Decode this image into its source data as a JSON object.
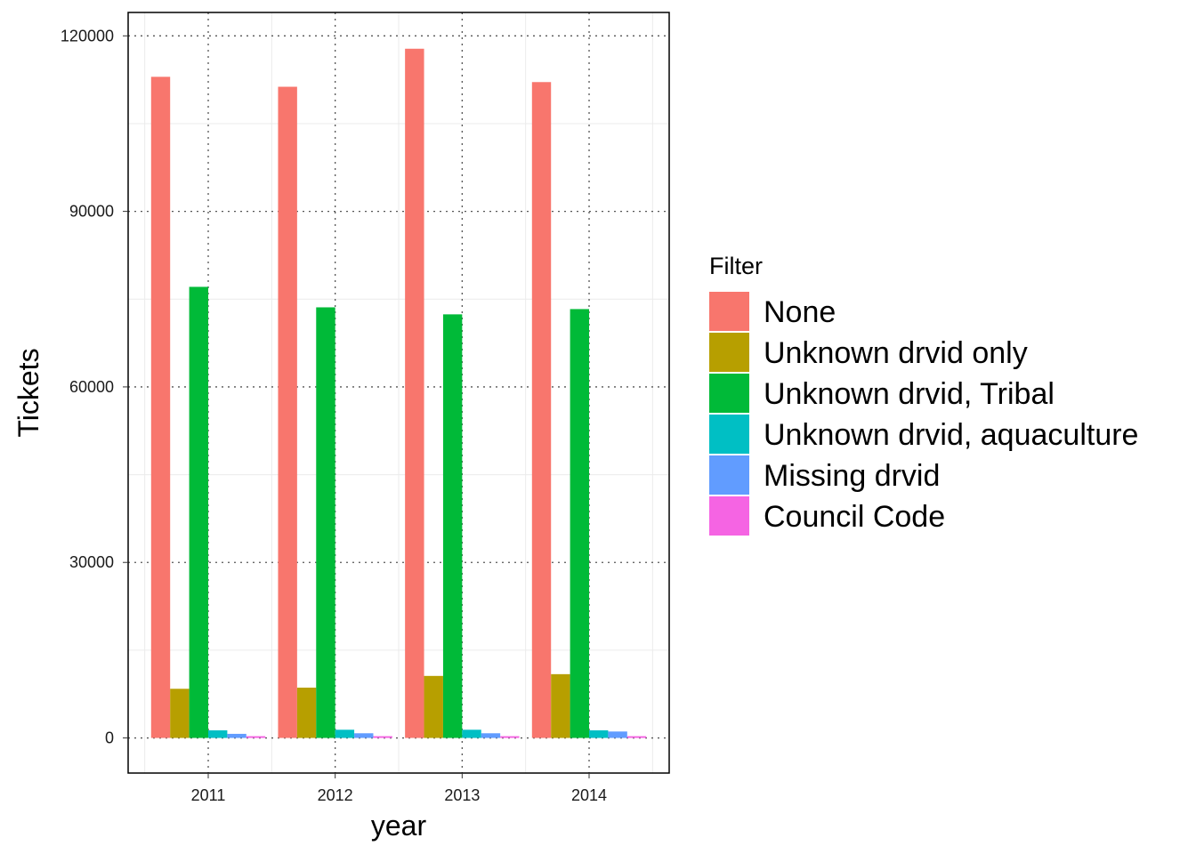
{
  "chart_data": {
    "type": "bar",
    "categories": [
      "2011",
      "2012",
      "2013",
      "2014"
    ],
    "series": [
      {
        "name": "None",
        "color": "#F8766D",
        "values": [
          113000,
          111300,
          117800,
          112100
        ]
      },
      {
        "name": "Unknown drvid only",
        "color": "#B79F00",
        "values": [
          8400,
          8600,
          10600,
          10900
        ]
      },
      {
        "name": "Unknown drvid, Tribal",
        "color": "#00BA38",
        "values": [
          77100,
          73600,
          72400,
          73300
        ]
      },
      {
        "name": "Unknown drvid, aquaculture",
        "color": "#00BFC4",
        "values": [
          1300,
          1400,
          1400,
          1300
        ]
      },
      {
        "name": "Missing drvid",
        "color": "#619CFF",
        "values": [
          700,
          800,
          800,
          1100
        ]
      },
      {
        "name": "Council Code",
        "color": "#F564E3",
        "values": [
          300,
          300,
          300,
          300
        ]
      }
    ],
    "xlabel": "year",
    "ylabel": "Tickets",
    "ylim": [
      -6000,
      124000
    ],
    "yticks": [
      0,
      30000,
      60000,
      90000,
      120000
    ],
    "ytick_labels": [
      "0",
      "30000",
      "60000",
      "90000",
      "120000"
    ],
    "legend": {
      "title": "Filter",
      "position": "right"
    },
    "grid": true
  }
}
